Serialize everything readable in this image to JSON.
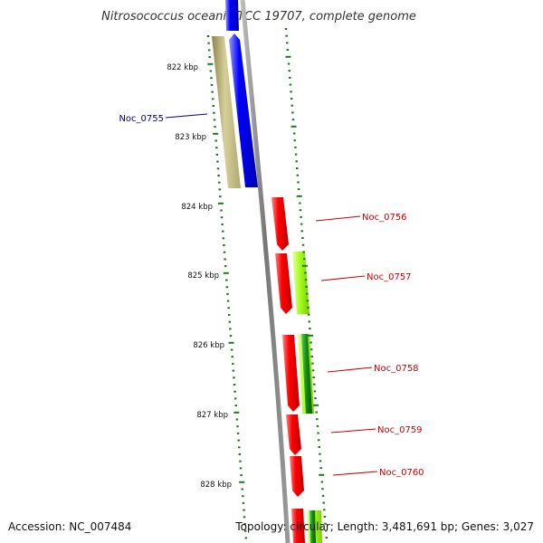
{
  "title": "Nitrosococcus oceani ATCC 19707, complete genome",
  "kbp_labels": [
    "822 kbp",
    "823 kbp",
    "824 kbp",
    "825 kbp",
    "826 kbp",
    "827 kbp",
    "828 kbp"
  ],
  "genes_left": [
    {
      "name": "Noc_0755",
      "color": "#00008b"
    }
  ],
  "genes_right": [
    {
      "name": "Noc_0756",
      "color": "#cc0000"
    },
    {
      "name": "Noc_0757",
      "color": "#cc0000"
    },
    {
      "name": "Noc_0758",
      "color": "#cc0000"
    },
    {
      "name": "Noc_0759",
      "color": "#cc0000"
    },
    {
      "name": "Noc_0760",
      "color": "#cc0000"
    }
  ],
  "footer": {
    "accession": "Accession: NC_007484",
    "topology": "Topology: circular; Length: 3,481,691 bp; Genes: 3,027"
  },
  "colors": {
    "backbone": "#888888",
    "tick": "#1a7a1a",
    "blue_gene": "#0000ee",
    "olive_gene": "#c8bf84",
    "red_gene": "#ff1a1a",
    "lime_gene": "#b3ff33",
    "dark_green_gene": "#22aa22"
  }
}
